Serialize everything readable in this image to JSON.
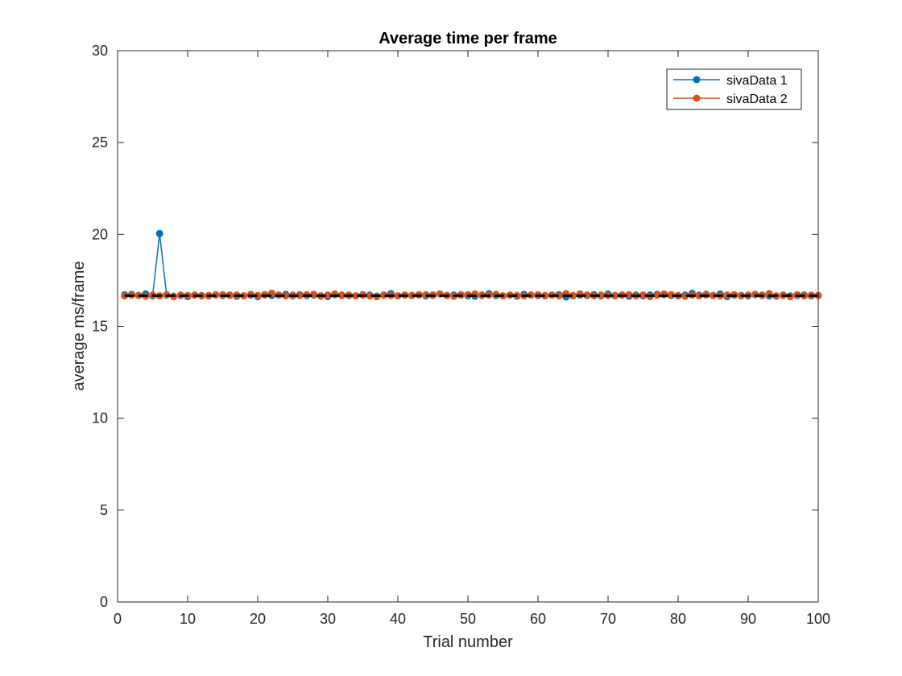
{
  "chart_data": {
    "type": "line",
    "title": "Average time per frame",
    "xlabel": "Trial number",
    "ylabel": "average ms/frame",
    "xlim": [
      0,
      100
    ],
    "ylim": [
      0,
      30
    ],
    "xticks": [
      0,
      10,
      20,
      30,
      40,
      50,
      60,
      70,
      80,
      90,
      100
    ],
    "yticks": [
      0,
      5,
      10,
      15,
      20,
      25,
      30
    ],
    "grid": false,
    "legend_position": "top-right",
    "reference_line": {
      "value": 16.67,
      "color": "#000000"
    },
    "x": [
      1,
      2,
      3,
      4,
      5,
      6,
      7,
      8,
      9,
      10,
      11,
      12,
      13,
      14,
      15,
      16,
      17,
      18,
      19,
      20,
      21,
      22,
      23,
      24,
      25,
      26,
      27,
      28,
      29,
      30,
      31,
      32,
      33,
      34,
      35,
      36,
      37,
      38,
      39,
      40,
      41,
      42,
      43,
      44,
      45,
      46,
      47,
      48,
      49,
      50,
      51,
      52,
      53,
      54,
      55,
      56,
      57,
      58,
      59,
      60,
      61,
      62,
      63,
      64,
      65,
      66,
      67,
      68,
      69,
      70,
      71,
      72,
      73,
      74,
      75,
      76,
      77,
      78,
      79,
      80,
      81,
      82,
      83,
      84,
      85,
      86,
      87,
      88,
      89,
      90,
      91,
      92,
      93,
      94,
      95,
      96,
      97,
      98,
      99,
      100
    ],
    "series": [
      {
        "name": "sivaData 1",
        "color": "#0072BD",
        "values": [
          16.72,
          16.74,
          16.68,
          16.76,
          16.66,
          20.05,
          16.7,
          16.64,
          16.68,
          16.62,
          16.7,
          16.68,
          16.66,
          16.72,
          16.68,
          16.7,
          16.64,
          16.66,
          16.7,
          16.62,
          16.72,
          16.68,
          16.7,
          16.74,
          16.66,
          16.72,
          16.68,
          16.7,
          16.66,
          16.62,
          16.72,
          16.7,
          16.68,
          16.66,
          16.72,
          16.7,
          16.64,
          16.7,
          16.78,
          16.66,
          16.7,
          16.68,
          16.72,
          16.66,
          16.7,
          16.76,
          16.68,
          16.7,
          16.72,
          16.66,
          16.64,
          16.7,
          16.78,
          16.68,
          16.66,
          16.7,
          16.64,
          16.74,
          16.7,
          16.68,
          16.66,
          16.7,
          16.72,
          16.6,
          16.66,
          16.7,
          16.68,
          16.72,
          16.66,
          16.76,
          16.68,
          16.7,
          16.64,
          16.7,
          16.66,
          16.7,
          16.74,
          16.72,
          16.68,
          16.66,
          16.7,
          16.8,
          16.7,
          16.74,
          16.68,
          16.76,
          16.62,
          16.7,
          16.68,
          16.66,
          16.72,
          16.7,
          16.66,
          16.64,
          16.7,
          16.66,
          16.68,
          16.7,
          16.66,
          16.68
        ]
      },
      {
        "name": "sivaData 2",
        "color": "#D95319",
        "values": [
          16.66,
          16.7,
          16.68,
          16.64,
          16.7,
          16.66,
          16.72,
          16.62,
          16.7,
          16.68,
          16.7,
          16.66,
          16.68,
          16.7,
          16.72,
          16.68,
          16.7,
          16.66,
          16.74,
          16.68,
          16.7,
          16.8,
          16.7,
          16.66,
          16.7,
          16.68,
          16.72,
          16.74,
          16.64,
          16.7,
          16.76,
          16.68,
          16.7,
          16.66,
          16.7,
          16.66,
          16.62,
          16.7,
          16.68,
          16.66,
          16.7,
          16.68,
          16.7,
          16.72,
          16.68,
          16.76,
          16.68,
          16.64,
          16.7,
          16.72,
          16.76,
          16.68,
          16.7,
          16.74,
          16.66,
          16.7,
          16.68,
          16.66,
          16.7,
          16.72,
          16.68,
          16.7,
          16.66,
          16.78,
          16.68,
          16.76,
          16.7,
          16.66,
          16.7,
          16.68,
          16.66,
          16.7,
          16.72,
          16.66,
          16.7,
          16.62,
          16.7,
          16.76,
          16.72,
          16.68,
          16.64,
          16.7,
          16.66,
          16.7,
          16.68,
          16.66,
          16.7,
          16.72,
          16.66,
          16.7,
          16.74,
          16.68,
          16.78,
          16.66,
          16.68,
          16.62,
          16.72,
          16.66,
          16.7,
          16.68
        ]
      }
    ]
  }
}
